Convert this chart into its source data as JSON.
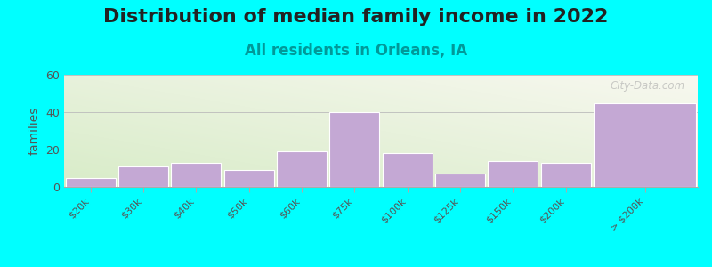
{
  "title": "Distribution of median family income in 2022",
  "subtitle": "All residents in Orleans, IA",
  "ylabel": "families",
  "background_color": "#00FFFF",
  "bar_color": "#C4A8D4",
  "bar_edgecolor": "#ffffff",
  "categories": [
    "$20k",
    "$30k",
    "$40k",
    "$50k",
    "$60k",
    "$75k",
    "$100k",
    "$125k",
    "$150k",
    "$200k",
    "> $200k"
  ],
  "values": [
    5,
    11,
    13,
    9,
    19,
    40,
    18,
    7,
    14,
    13,
    45
  ],
  "ylim": [
    0,
    60
  ],
  "yticks": [
    0,
    20,
    40,
    60
  ],
  "title_fontsize": 16,
  "subtitle_fontsize": 12,
  "subtitle_color": "#009999",
  "watermark": "City-Data.com",
  "gradient_bottom": "#d8ecc8",
  "gradient_top": "#f8f8f0"
}
